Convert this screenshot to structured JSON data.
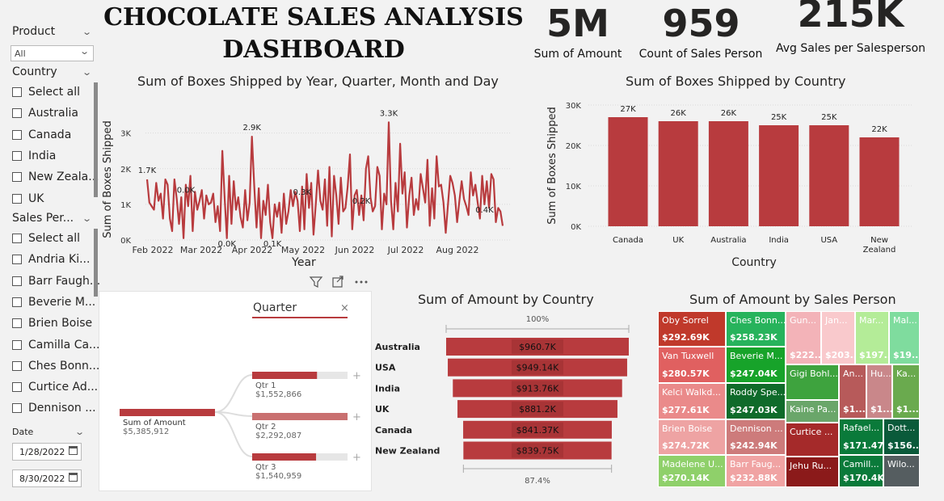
{
  "title": {
    "line1": "CHOCOLATE SALES ANALYSIS",
    "line2": "DASHBOARD"
  },
  "kpis": [
    {
      "value": "5M",
      "label": "Sum of Amount"
    },
    {
      "value": "959",
      "label": "Count of Sales Person"
    },
    {
      "value": "215K",
      "label": "Avg Sales per Salesperson"
    }
  ],
  "slicers": {
    "product": {
      "title": "Product",
      "selected": "All"
    },
    "country": {
      "title": "Country",
      "items": [
        "Select all",
        "Australia",
        "Canada",
        "India",
        "New Zeala...",
        "UK"
      ]
    },
    "sales_person": {
      "title": "Sales Per...",
      "items": [
        "Select all",
        "Andria Ki...",
        "Barr Faugh...",
        "Beverie M...",
        "Brien Boise",
        "Camilla Ca...",
        "Ches Bonn...",
        "Curtice Ad...",
        "Dennison ..."
      ]
    },
    "date": {
      "title": "Date",
      "start": "1/28/2022",
      "end": "8/30/2022"
    }
  },
  "colors": {
    "accent": "#b83b3e",
    "bar": "#b83b3e",
    "grid": "#d9d9d9"
  },
  "chart_data": [
    {
      "type": "line",
      "title": "Sum of Boxes Shipped by Year, Quarter, Month and Day",
      "xlabel": "Year",
      "ylabel": "Sum of Boxes Shipped",
      "yticks": [
        "0K",
        "1K",
        "2K",
        "3K"
      ],
      "ylim": [
        0,
        3400
      ],
      "xticks": [
        "Feb 2022",
        "Mar 2022",
        "Apr 2022",
        "May 2022",
        "Jun 2022",
        "Jul 2022",
        "Aug 2022"
      ],
      "values": [
        1700,
        1050,
        950,
        850,
        1600,
        1100,
        1300,
        600,
        1700,
        1550,
        600,
        250,
        1700,
        1150,
        450,
        1200,
        50,
        1550,
        950,
        1800,
        250,
        1350,
        850,
        1100,
        1400,
        600,
        1250,
        1000,
        1050,
        1300,
        500,
        950,
        250,
        2500,
        1200,
        50,
        1800,
        450,
        1650,
        850,
        1200,
        650,
        350,
        1400,
        550,
        1050,
        2900,
        1500,
        350,
        1450,
        50,
        1100,
        700,
        1550,
        500,
        50,
        1000,
        650,
        1050,
        200,
        1300,
        450,
        800,
        1400,
        950,
        1350,
        1100,
        250,
        1500,
        300,
        1850,
        900,
        1600,
        150,
        1000,
        1950,
        1100,
        850,
        1700,
        400,
        2050,
        100,
        1800,
        1250,
        450,
        1750,
        800,
        900,
        1500,
        2400,
        300,
        1250,
        1400,
        700,
        1250,
        550,
        2000,
        2350,
        1200,
        800,
        950,
        2050,
        1800,
        300,
        1300,
        1000,
        3300,
        1100,
        300,
        1600,
        800,
        2700,
        1300,
        1900,
        350,
        1250,
        1750,
        700,
        1150,
        850,
        1850,
        1450,
        1050,
        2250,
        400,
        1450,
        600,
        2350,
        1500,
        1550,
        1050,
        200,
        1000,
        1800,
        1600,
        1250,
        500,
        1100,
        1650,
        1150,
        950,
        700,
        1900,
        1250,
        1550,
        1050,
        600,
        1800,
        1000,
        1650,
        900,
        1850,
        1700,
        500,
        900,
        800,
        400
      ],
      "annotations": [
        "1.7K",
        "2.9K",
        "3.3K",
        "0.0K",
        "0.0K",
        "0.1K",
        "0.3K",
        "0.2K",
        "0.4K"
      ]
    },
    {
      "type": "bar",
      "title": "Sum of Boxes Shipped by Country",
      "xlabel": "Country",
      "ylabel": "Sum of Boxes Shipped",
      "categories": [
        "Canada",
        "UK",
        "Australia",
        "India",
        "USA",
        "New Zealand"
      ],
      "values": [
        27,
        26,
        26,
        25,
        25,
        22
      ],
      "data_labels": [
        "27K",
        "26K",
        "26K",
        "25K",
        "25K",
        "22K"
      ],
      "yticks": [
        "0K",
        "10K",
        "20K",
        "30K"
      ],
      "ylim": [
        0,
        30
      ]
    },
    {
      "type": "decomposition_tree",
      "title": "",
      "header": "Quarter",
      "root": {
        "label": "Sum of Amount",
        "value": "$5,385,912"
      },
      "nodes": [
        {
          "label": "Qtr 1",
          "value": "$1,552,866",
          "share": 0.68
        },
        {
          "label": "Qtr 2",
          "value": "$2,292,087",
          "share": 1.0
        },
        {
          "label": "Qtr 3",
          "value": "$1,540,959",
          "share": 0.67
        }
      ]
    },
    {
      "type": "funnel",
      "title": "Sum of Amount by Country",
      "top_pct": "100%",
      "bottom_pct": "87.4%",
      "categories": [
        "Australia",
        "USA",
        "India",
        "UK",
        "Canada",
        "New Zealand"
      ],
      "values": [
        960.7,
        949.14,
        913.76,
        881.2,
        841.37,
        839.75
      ],
      "data_labels": [
        "$960.7K",
        "$949.14K",
        "$913.76K",
        "$881.2K",
        "$841.37K",
        "$839.75K"
      ]
    },
    {
      "type": "treemap",
      "title": "Sum of Amount by Sales Person",
      "cells": [
        {
          "name": "Oby Sorrel",
          "value": "$292.69K",
          "color": "#c0392b"
        },
        {
          "name": "Van Tuxwell",
          "value": "$280.57K",
          "color": "#e06060"
        },
        {
          "name": "Kelci Walkd...",
          "value": "$277.61K",
          "color": "#ea8a8a"
        },
        {
          "name": "Brien Boise",
          "value": "$274.72K",
          "color": "#eea3a3"
        },
        {
          "name": "Madelene U...",
          "value": "$270.14K",
          "color": "#8fd06a"
        },
        {
          "name": "Ches Bonn...",
          "value": "$258.23K",
          "color": "#27b35c"
        },
        {
          "name": "Beverie M...",
          "value": "$247.04K",
          "color": "#17a32a"
        },
        {
          "name": "Roddy Spe...",
          "value": "$247.03K",
          "color": "#0f6b2a"
        },
        {
          "name": "Dennison ...",
          "value": "$242.94K",
          "color": "#cd7b7b"
        },
        {
          "name": "Barr Faug...",
          "value": "$232.88K",
          "color": "#f0a3a3"
        },
        {
          "name": "Gun...",
          "value": "$222....",
          "color": "#f3b3b8"
        },
        {
          "name": "Jan...",
          "value": "$203...",
          "color": "#f9c9cc"
        },
        {
          "name": "Mar...",
          "value": "$197...",
          "color": "#b4ec98"
        },
        {
          "name": "Mal...",
          "value": "$19...",
          "color": "#7fdc9e"
        },
        {
          "name": "Gigi Bohl...",
          "value": "",
          "color": "#3ea33e"
        },
        {
          "name": "An...",
          "value": "$1...",
          "color": "#b75a5a"
        },
        {
          "name": "Hu...",
          "value": "$1...",
          "color": "#c9878a"
        },
        {
          "name": "Ka...",
          "value": "$1...",
          "color": "#6aaa4e"
        },
        {
          "name": "Kaine Pa...",
          "value": "",
          "color": "#6aa66a"
        },
        {
          "name": "Curtice ...",
          "value": "",
          "color": "#a52a2a"
        },
        {
          "name": "Rafael...",
          "value": "$171.47K",
          "color": "#0a7a3a"
        },
        {
          "name": "Dott...",
          "value": "$156....",
          "color": "#0a5a3a"
        },
        {
          "name": "Jehu Ru...",
          "value": "",
          "color": "#8b1a1a"
        },
        {
          "name": "Camill...",
          "value": "$170.4K",
          "color": "#0a7a3a"
        },
        {
          "name": "Wilo...",
          "value": "",
          "color": "#555d60"
        }
      ]
    }
  ]
}
